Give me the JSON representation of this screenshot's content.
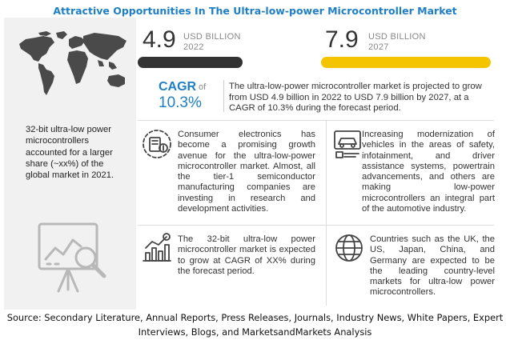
{
  "title": "Attractive Opportunities In The Ultra-low-power Microcontroller Market",
  "left_panel": {
    "map_icon": "world-map-icon",
    "text": "32-bit ultra-low power microcontrollers accounted for a larger share (~xx%) of the global market in 2021.",
    "chart_icon": "analytics-chart-magnifier-icon"
  },
  "stats": [
    {
      "value": "4.9",
      "unit": "USD BILLION",
      "year": "2022",
      "bar_color": "#333333",
      "bar_fill": 0.62
    },
    {
      "value": "7.9",
      "unit": "USD BILLION",
      "year": "2027",
      "bar_color": "#f5c400",
      "bar_fill": 1.0
    }
  ],
  "cagr": {
    "label": "CAGR",
    "of": "of",
    "value": "10.3%",
    "summary": "The ultra-low-power microcontroller market is projected to grow from USD 4.9 billion in 2022 to USD 7.9 billion by 2027, at a CAGR of 10.3% during the forecast period."
  },
  "cards": [
    {
      "icon": "consumer-electronics-icon",
      "text": "Consumer electronics has become a promising growth avenue for the ultra-low-power microcontroller market. Almost, all the tier-1 semiconductor manufacturing companies are investing in research and development activities."
    },
    {
      "icon": "vehicle-modernization-icon",
      "text": "Increasing modernization of vehicles in the areas of safety, infotainment, and driver assistance systems, powertrain advancements, and others are making low-power microcontrollers an integral part of the automotive industry."
    },
    {
      "icon": "growth-chart-dollar-icon",
      "text": "The 32-bit ultra-low power microcontroller market is expected to grow at CAGR of XX% during the forecast period."
    },
    {
      "icon": "globe-icon",
      "text": "Countries such as the UK, the US, Japan, China, and Germany are expected to be the leading country-level markets for ultra-low power microcontrollers."
    }
  ],
  "source": "Source: Secondary Literature, Annual Reports, Press Releases, Journals, Industry News, White Papers, Expert Interviews, Blogs, and MarketsandMarkets Analysis",
  "colors": {
    "accent_blue": "#1f7fc4",
    "panel_gray": "#f1f1f1",
    "bar_dark": "#333333",
    "bar_yellow": "#f5c400"
  }
}
